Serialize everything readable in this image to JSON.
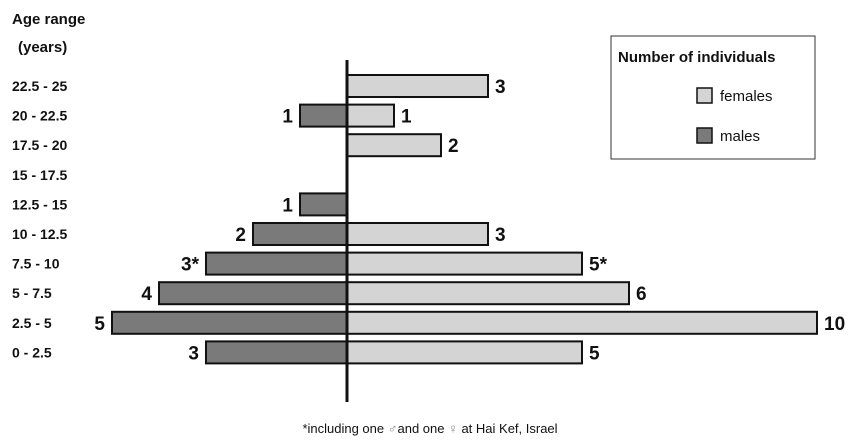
{
  "chart_data": {
    "type": "bar",
    "orientation": "horizontal-pyramid",
    "ylabel_line1": "Age range",
    "ylabel_line2": "(years)",
    "categories": [
      "22.5 - 25",
      "20 - 22.5",
      "17.5 - 20",
      "15 - 17.5",
      "12.5 - 15",
      "10 - 12.5",
      "7.5 - 10",
      "5 - 7.5",
      "2.5 - 5",
      "0 - 2.5"
    ],
    "series": [
      {
        "name": "females",
        "color": "#d4d4d4",
        "values": [
          3,
          1,
          2,
          0,
          0,
          3,
          5,
          6,
          10,
          5
        ],
        "labels": [
          "3",
          "1",
          "2",
          "",
          "",
          "3",
          "5*",
          "6",
          "10",
          "5"
        ]
      },
      {
        "name": "males",
        "color": "#7a7a7a",
        "values": [
          0,
          1,
          0,
          0,
          1,
          2,
          3,
          4,
          5,
          3
        ],
        "labels": [
          "",
          "1",
          "",
          "",
          "1",
          "2",
          "3*",
          "4",
          "5",
          "3"
        ]
      }
    ],
    "legend": {
      "title": "Number of individuals",
      "position": "top-right"
    },
    "footnote_parts": [
      "*including one ",
      "♂",
      "and one ",
      "♀",
      " at Hai Kef, Israel"
    ]
  }
}
